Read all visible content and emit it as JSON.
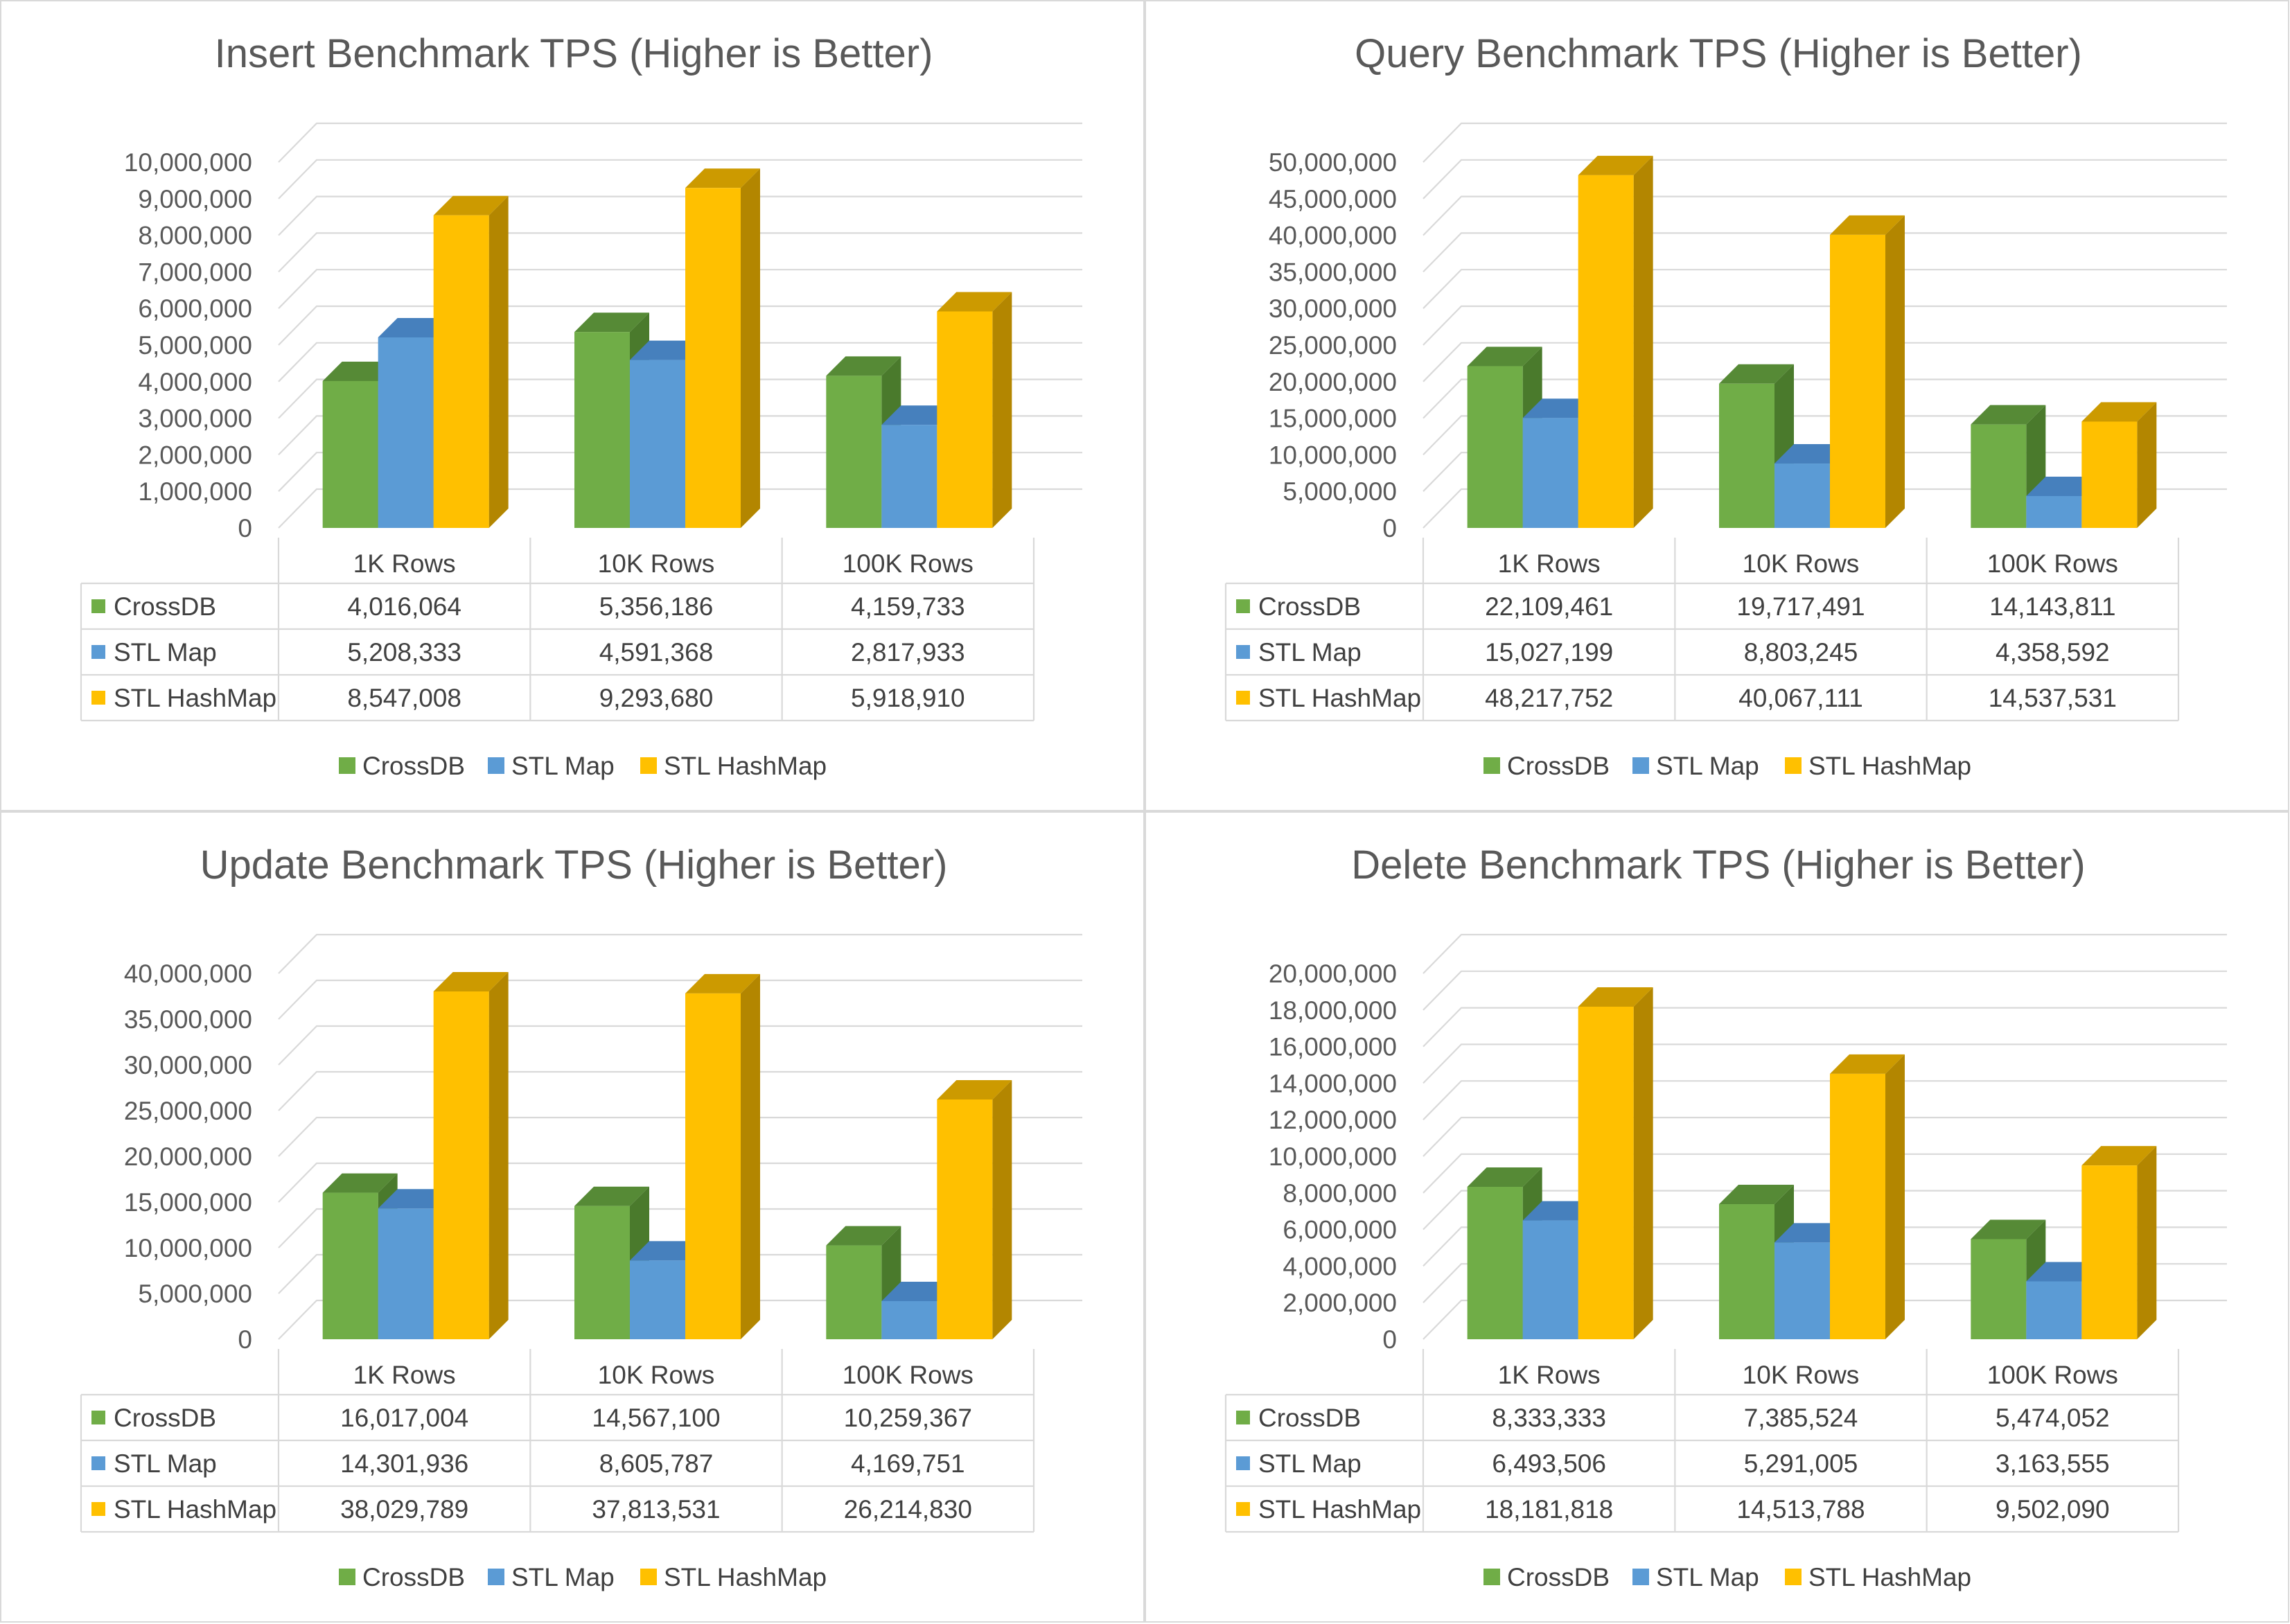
{
  "series_colors": [
    "#70ad47",
    "#5b9bd5",
    "#ffc000"
  ],
  "series_side_colors": [
    "#4a7a2c",
    "#3e74a8",
    "#b38600"
  ],
  "series_top_colors": [
    "#568a36",
    "#4680bd",
    "#cc9a00"
  ],
  "legend": [
    "CrossDB",
    "STL Map",
    "STL HashMap"
  ],
  "chart_data": [
    {
      "type": "bar",
      "title": "Insert Benchmark TPS (Higher is Better)",
      "categories": [
        "1K Rows",
        "10K Rows",
        "100K Rows"
      ],
      "ylim": [
        0,
        10000000
      ],
      "yticks": [
        "0",
        "1,000,000",
        "2,000,000",
        "3,000,000",
        "4,000,000",
        "5,000,000",
        "6,000,000",
        "7,000,000",
        "8,000,000",
        "9,000,000",
        "10,000,000"
      ],
      "series": [
        {
          "name": "CrossDB",
          "values": [
            4016064,
            5356186,
            4159733
          ],
          "labels": [
            "4,016,064",
            "5,356,186",
            "4,159,733"
          ]
        },
        {
          "name": "STL Map",
          "values": [
            5208333,
            4591368,
            2817933
          ],
          "labels": [
            "5,208,333",
            "4,591,368",
            "2,817,933"
          ]
        },
        {
          "name": "STL HashMap",
          "values": [
            8547008,
            9293680,
            5918910
          ],
          "labels": [
            "8,547,008",
            "9,293,680",
            "5,918,910"
          ]
        }
      ],
      "legend_position": "bottom",
      "data_table": true
    },
    {
      "type": "bar",
      "title": "Query Benchmark TPS (Higher is Better)",
      "categories": [
        "1K Rows",
        "10K Rows",
        "100K Rows"
      ],
      "ylim": [
        0,
        50000000
      ],
      "yticks": [
        "0",
        "5,000,000",
        "10,000,000",
        "15,000,000",
        "20,000,000",
        "25,000,000",
        "30,000,000",
        "35,000,000",
        "40,000,000",
        "45,000,000",
        "50,000,000"
      ],
      "series": [
        {
          "name": "CrossDB",
          "values": [
            22109461,
            19717491,
            14143811
          ],
          "labels": [
            "22,109,461",
            "19,717,491",
            "14,143,811"
          ]
        },
        {
          "name": "STL Map",
          "values": [
            15027199,
            8803245,
            4358592
          ],
          "labels": [
            "15,027,199",
            "8,803,245",
            "4,358,592"
          ]
        },
        {
          "name": "STL HashMap",
          "values": [
            48217752,
            40067111,
            14537531
          ],
          "labels": [
            "48,217,752",
            "40,067,111",
            "14,537,531"
          ]
        }
      ],
      "legend_position": "bottom",
      "data_table": true
    },
    {
      "type": "bar",
      "title": "Update Benchmark TPS (Higher is Better)",
      "categories": [
        "1K Rows",
        "10K Rows",
        "100K Rows"
      ],
      "ylim": [
        0,
        40000000
      ],
      "yticks": [
        "0",
        "5,000,000",
        "10,000,000",
        "15,000,000",
        "20,000,000",
        "25,000,000",
        "30,000,000",
        "35,000,000",
        "40,000,000"
      ],
      "series": [
        {
          "name": "CrossDB",
          "values": [
            16017004,
            14567100,
            10259367
          ],
          "labels": [
            "16,017,004",
            "14,567,100",
            "10,259,367"
          ]
        },
        {
          "name": "STL Map",
          "values": [
            14301936,
            8605787,
            4169751
          ],
          "labels": [
            "14,301,936",
            "8,605,787",
            "4,169,751"
          ]
        },
        {
          "name": "STL HashMap",
          "values": [
            38029789,
            37813531,
            26214830
          ],
          "labels": [
            "38,029,789",
            "37,813,531",
            "26,214,830"
          ]
        }
      ],
      "legend_position": "bottom",
      "data_table": true
    },
    {
      "type": "bar",
      "title": "Delete Benchmark TPS (Higher is Better)",
      "categories": [
        "1K Rows",
        "10K Rows",
        "100K Rows"
      ],
      "ylim": [
        0,
        20000000
      ],
      "yticks": [
        "0",
        "2,000,000",
        "4,000,000",
        "6,000,000",
        "8,000,000",
        "10,000,000",
        "12,000,000",
        "14,000,000",
        "16,000,000",
        "18,000,000",
        "20,000,000"
      ],
      "series": [
        {
          "name": "CrossDB",
          "values": [
            8333333,
            7385524,
            5474052
          ],
          "labels": [
            "8,333,333",
            "7,385,524",
            "5,474,052"
          ]
        },
        {
          "name": "STL Map",
          "values": [
            6493506,
            5291005,
            3163555
          ],
          "labels": [
            "6,493,506",
            "5,291,005",
            "3,163,555"
          ]
        },
        {
          "name": "STL HashMap",
          "values": [
            18181818,
            14513788,
            9502090
          ],
          "labels": [
            "18,181,818",
            "14,513,788",
            "9,502,090"
          ]
        }
      ],
      "legend_position": "bottom",
      "data_table": true
    }
  ]
}
